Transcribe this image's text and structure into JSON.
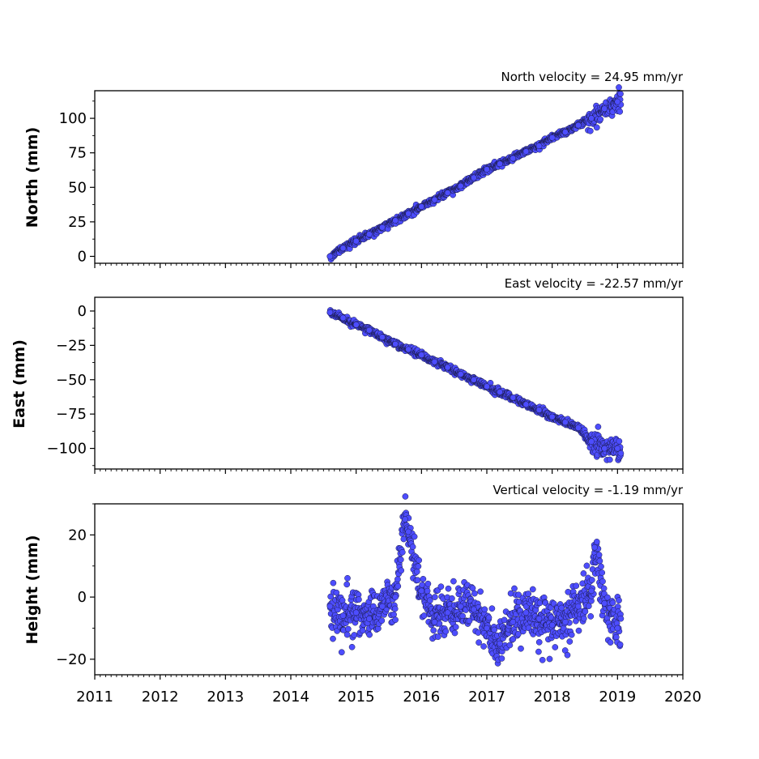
{
  "figure": {
    "marker_color": "#4d4dff",
    "marker_edge": "#1a1a4a"
  },
  "chart_data": [
    {
      "type": "scatter",
      "title": "North velocity = 24.95 mm/yr",
      "xlabel": "",
      "ylabel": "North (mm)",
      "xlim": [
        2011,
        2020
      ],
      "ylim": [
        -5,
        120
      ],
      "yticks": [
        0,
        25,
        50,
        75,
        100
      ],
      "ytick_labels": [
        "0",
        "25",
        "50",
        "75",
        "100"
      ],
      "xtick_labels_visible": false,
      "data_span_years": [
        2014.6,
        2019.05
      ],
      "series": [
        {
          "x": [
            2014.6,
            2014.8,
            2015.0,
            2015.2,
            2015.4,
            2015.6,
            2015.8,
            2016.0,
            2016.2,
            2016.4,
            2016.6,
            2016.8,
            2017.0,
            2017.2,
            2017.4,
            2017.6,
            2017.8,
            2018.0,
            2018.2,
            2018.4,
            2018.6,
            2018.8,
            2019.0
          ],
          "y": [
            0,
            6,
            11,
            16,
            21,
            26,
            31,
            36,
            41,
            46,
            51,
            57,
            63,
            67,
            71,
            76,
            80,
            86,
            90,
            95,
            100,
            107,
            112
          ]
        }
      ]
    },
    {
      "type": "scatter",
      "title": "East velocity = -22.57 mm/yr",
      "xlabel": "",
      "ylabel": "East (mm)",
      "xlim": [
        2011,
        2020
      ],
      "ylim": [
        -115,
        10
      ],
      "yticks": [
        0,
        -25,
        -50,
        -75,
        -100
      ],
      "ytick_labels": [
        "0",
        "−25",
        "−50",
        "−75",
        "−100"
      ],
      "xtick_labels_visible": false,
      "data_span_years": [
        2014.6,
        2019.05
      ],
      "series": [
        {
          "x": [
            2014.6,
            2014.8,
            2015.0,
            2015.2,
            2015.4,
            2015.6,
            2015.8,
            2016.0,
            2016.2,
            2016.4,
            2016.6,
            2016.8,
            2017.0,
            2017.2,
            2017.4,
            2017.6,
            2017.8,
            2018.0,
            2018.2,
            2018.4,
            2018.6,
            2018.8,
            2019.0
          ],
          "y": [
            -1,
            -5,
            -10,
            -14,
            -19,
            -24,
            -28,
            -32,
            -37,
            -41,
            -46,
            -50,
            -55,
            -59,
            -63,
            -68,
            -72,
            -77,
            -81,
            -85,
            -95,
            -100,
            -100
          ]
        }
      ]
    },
    {
      "type": "scatter",
      "title": "Vertical velocity = -1.19 mm/yr",
      "xlabel": "",
      "ylabel": "Height (mm)",
      "xlim": [
        2011,
        2020
      ],
      "ylim": [
        -25,
        30
      ],
      "yticks": [
        20,
        0,
        -20
      ],
      "ytick_labels": [
        "20",
        "0",
        "−20"
      ],
      "xticks": [
        2011,
        2012,
        2013,
        2014,
        2015,
        2016,
        2017,
        2018,
        2019,
        2020
      ],
      "xtick_labels": [
        "2011",
        "2012",
        "2013",
        "2014",
        "2015",
        "2016",
        "2017",
        "2018",
        "2019",
        "2020"
      ],
      "xtick_labels_visible": true,
      "data_span_years": [
        2014.6,
        2019.05
      ],
      "series": [
        {
          "x": [
            2014.6,
            2014.8,
            2015.0,
            2015.2,
            2015.4,
            2015.6,
            2015.75,
            2015.8,
            2016.0,
            2016.2,
            2016.4,
            2016.6,
            2016.8,
            2017.0,
            2017.2,
            2017.4,
            2017.6,
            2017.8,
            2018.0,
            2018.2,
            2018.4,
            2018.6,
            2018.65,
            2018.8,
            2019.0
          ],
          "y": [
            -3,
            -6,
            -5,
            -7,
            -3,
            0,
            25,
            21,
            2,
            -8,
            -5,
            -3,
            -4,
            -10,
            -15,
            -8,
            -5,
            -7,
            -9,
            -8,
            -3,
            2,
            16,
            -2,
            -10
          ]
        }
      ]
    }
  ]
}
